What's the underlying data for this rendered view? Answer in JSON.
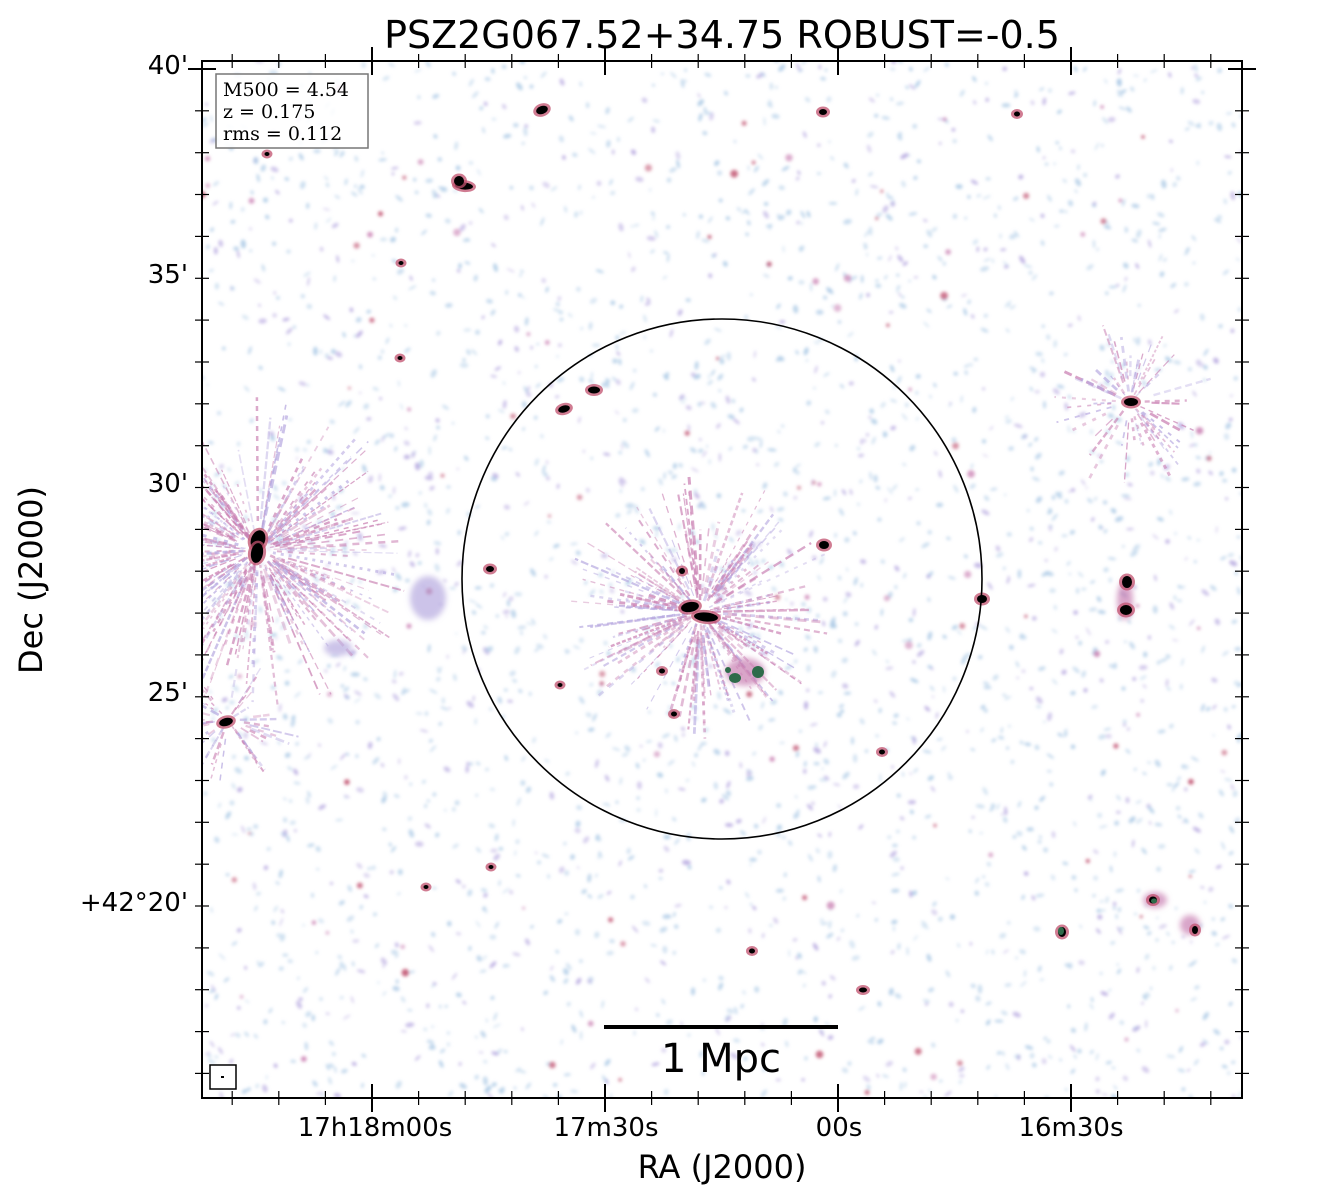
{
  "figure": {
    "title": "PSZ2G067.52+34.75 ROBUST=-0.5",
    "x_axis_label": "RA (J2000)",
    "y_axis_label": "Dec (J2000)",
    "x_tick_labels": [
      "17h18m00s",
      "17m30s",
      "00s",
      "16m30s"
    ],
    "y_tick_labels": [
      "40'",
      "35'",
      "30'",
      "25'",
      "+42°20'"
    ],
    "info_box": {
      "m500": "M500 = 4.54",
      "z": "z = 0.175",
      "rms": "rms = 0.112"
    },
    "scale_bar_label": "1 Mpc",
    "colors": {
      "background": "#ffffff",
      "noise_light_blue": "#aecbe6",
      "noise_lavender": "#b7a9e0",
      "emission_pink": "#c97fb2",
      "emission_red": "#c0506e",
      "emission_green": "#2e6b4a",
      "source_core": "#000000",
      "frame": "#000000",
      "info_box_border": "#777777"
    }
  }
}
